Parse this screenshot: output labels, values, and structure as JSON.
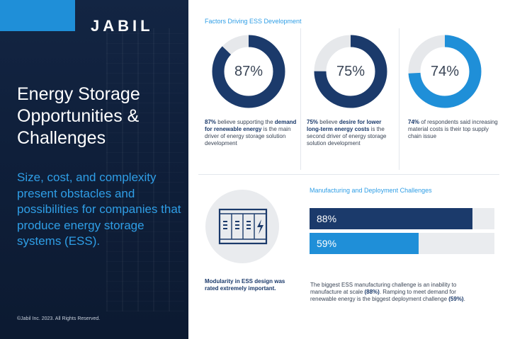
{
  "brand": {
    "logo": "JABIL",
    "colors": {
      "navy": "#1b3a6b",
      "blue": "#1f8fd8",
      "track": "#e6e8eb"
    }
  },
  "left_panel": {
    "title": "Energy Storage Opportunities & Challenges",
    "subtitle": "Size, cost, and complexity present obstacles and possibilities for companies that produce energy storage systems (ESS).",
    "copyright": "©Jabil Inc. 2023. All Rights Reserved."
  },
  "factors": {
    "heading": "Factors Driving ESS Development",
    "items": [
      {
        "value": "87%",
        "fraction": 0.87,
        "color": "#1b3a6b",
        "lead": "87%",
        "t1": " believe supporting the ",
        "em": "demand for renewable energy",
        "t2": " is the main driver of energy storage solution development"
      },
      {
        "value": "75%",
        "fraction": 0.75,
        "color": "#1b3a6b",
        "lead": "75%",
        "t1": " believe ",
        "em": "desire for lower long-term energy costs",
        "t2": " is the second driver of energy storage solution development"
      },
      {
        "value": "74%",
        "fraction": 0.74,
        "color": "#1f8fd8",
        "lead": "74%",
        "t1": " of respondents said increasing material costs is their top supply chain issue",
        "em": "",
        "t2": ""
      }
    ]
  },
  "modularity": {
    "icon": "battery-container-icon",
    "text": "Modularity in ESS design was rated extremely important."
  },
  "manufacturing": {
    "heading": "Manufacturing and Deployment Challenges",
    "bars": [
      {
        "label": "88%",
        "fraction": 0.88,
        "color": "#1b3a6b"
      },
      {
        "label": "59%",
        "fraction": 0.59,
        "color": "#1f8fd8"
      }
    ],
    "text": {
      "t1": "The biggest ESS manufacturing challenge is an inability to manufacture at scale ",
      "b1": "(88%)",
      "t2": ". Ramping to meet demand for renewable energy is the biggest deployment challenge ",
      "b2": "(59%)",
      "t3": "."
    }
  }
}
